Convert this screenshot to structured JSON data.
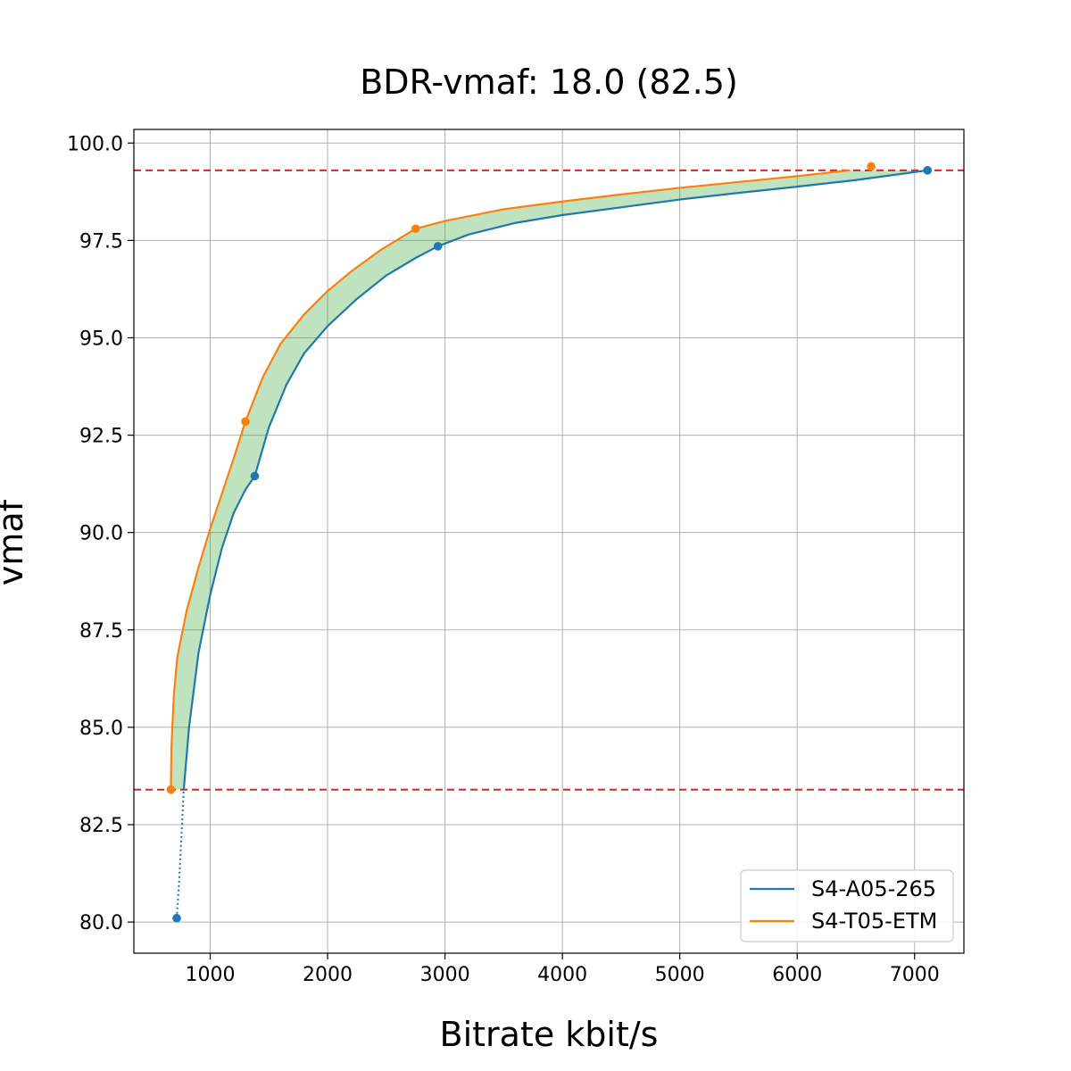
{
  "chart_data": {
    "type": "line",
    "title": "BDR-vmaf: 18.0 (82.5)",
    "xlabel": "Bitrate kbit/s",
    "ylabel": "vmaf",
    "xlim": [
      350,
      7420
    ],
    "ylim": [
      79.2,
      100.35
    ],
    "xticks": [
      1000,
      2000,
      3000,
      4000,
      5000,
      6000,
      7000
    ],
    "xtick_labels": [
      "1000",
      "2000",
      "3000",
      "4000",
      "5000",
      "6000",
      "7000"
    ],
    "yticks": [
      80.0,
      82.5,
      85.0,
      87.5,
      90.0,
      92.5,
      95.0,
      97.5,
      100.0
    ],
    "ytick_labels": [
      "80.0",
      "82.5",
      "85.0",
      "87.5",
      "90.0",
      "92.5",
      "95.0",
      "97.5",
      "100.0"
    ],
    "grid": true,
    "legend_position": "bottom-right",
    "reference_lines": [
      {
        "axis": "y",
        "value": 99.3,
        "color": "#d62728",
        "style": "dashed"
      },
      {
        "axis": "y",
        "value": 83.4,
        "color": "#d62728",
        "style": "dashed"
      }
    ],
    "shaded_region": {
      "color": "#2ca02c",
      "opacity": 0.3,
      "between": [
        "S4-A05-265",
        "S4-T05-ETM"
      ],
      "ymin": 83.4,
      "ymax": 99.3
    },
    "series": [
      {
        "name": "S4-A05-265",
        "color": "#1f77b4",
        "points": [
          {
            "x": 715,
            "y": 80.1
          },
          {
            "x": 1380,
            "y": 91.45
          },
          {
            "x": 2940,
            "y": 97.35
          },
          {
            "x": 7110,
            "y": 99.3
          }
        ],
        "curve": [
          {
            "x": 775,
            "y": 83.4
          },
          {
            "x": 820,
            "y": 85.0
          },
          {
            "x": 900,
            "y": 86.9
          },
          {
            "x": 1000,
            "y": 88.4
          },
          {
            "x": 1100,
            "y": 89.6
          },
          {
            "x": 1200,
            "y": 90.5
          },
          {
            "x": 1300,
            "y": 91.1
          },
          {
            "x": 1380,
            "y": 91.45
          },
          {
            "x": 1500,
            "y": 92.7
          },
          {
            "x": 1650,
            "y": 93.8
          },
          {
            "x": 1800,
            "y": 94.6
          },
          {
            "x": 2000,
            "y": 95.3
          },
          {
            "x": 2250,
            "y": 96.0
          },
          {
            "x": 2500,
            "y": 96.6
          },
          {
            "x": 2750,
            "y": 97.05
          },
          {
            "x": 2940,
            "y": 97.35
          },
          {
            "x": 3200,
            "y": 97.65
          },
          {
            "x": 3600,
            "y": 97.95
          },
          {
            "x": 4000,
            "y": 98.15
          },
          {
            "x": 4500,
            "y": 98.35
          },
          {
            "x": 5000,
            "y": 98.55
          },
          {
            "x": 5500,
            "y": 98.72
          },
          {
            "x": 6000,
            "y": 98.88
          },
          {
            "x": 6500,
            "y": 99.05
          },
          {
            "x": 7110,
            "y": 99.3
          }
        ],
        "extrapolated": [
          {
            "x": 715,
            "y": 80.1
          },
          {
            "x": 735,
            "y": 81.0
          },
          {
            "x": 755,
            "y": 82.2
          },
          {
            "x": 775,
            "y": 83.4
          }
        ]
      },
      {
        "name": "S4-T05-ETM",
        "color": "#ff7f0e",
        "points": [
          {
            "x": 665,
            "y": 83.4
          },
          {
            "x": 1300,
            "y": 92.85
          },
          {
            "x": 2750,
            "y": 97.8
          },
          {
            "x": 6630,
            "y": 99.4
          }
        ],
        "curve": [
          {
            "x": 665,
            "y": 83.4
          },
          {
            "x": 670,
            "y": 84.5
          },
          {
            "x": 690,
            "y": 85.8
          },
          {
            "x": 720,
            "y": 86.8
          },
          {
            "x": 800,
            "y": 88.0
          },
          {
            "x": 900,
            "y": 89.1
          },
          {
            "x": 1000,
            "y": 90.1
          },
          {
            "x": 1100,
            "y": 91.0
          },
          {
            "x": 1200,
            "y": 91.9
          },
          {
            "x": 1300,
            "y": 92.85
          },
          {
            "x": 1450,
            "y": 94.0
          },
          {
            "x": 1600,
            "y": 94.85
          },
          {
            "x": 1800,
            "y": 95.6
          },
          {
            "x": 2000,
            "y": 96.2
          },
          {
            "x": 2200,
            "y": 96.7
          },
          {
            "x": 2450,
            "y": 97.25
          },
          {
            "x": 2750,
            "y": 97.8
          },
          {
            "x": 3000,
            "y": 98.0
          },
          {
            "x": 3500,
            "y": 98.3
          },
          {
            "x": 4000,
            "y": 98.5
          },
          {
            "x": 4500,
            "y": 98.68
          },
          {
            "x": 5000,
            "y": 98.85
          },
          {
            "x": 5500,
            "y": 99.0
          },
          {
            "x": 6000,
            "y": 99.15
          },
          {
            "x": 6450,
            "y": 99.3
          }
        ]
      }
    ]
  }
}
